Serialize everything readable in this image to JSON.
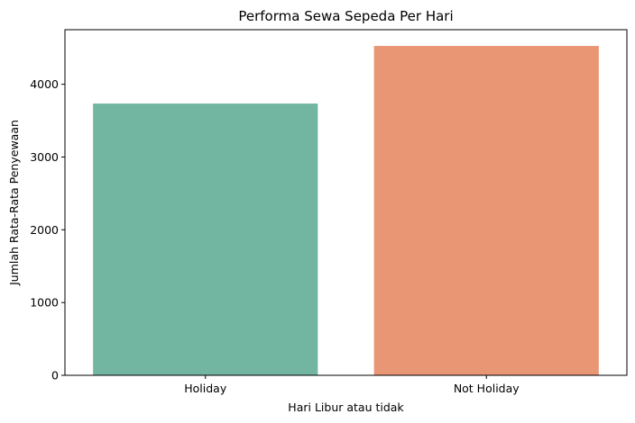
{
  "chart_data": {
    "type": "bar",
    "title": "Performa Sewa Sepeda Per Hari",
    "xlabel": "Hari Libur atau tidak",
    "ylabel": "Jumlah Rata-Rata Penyewaan",
    "categories": [
      "Holiday",
      "Not Holiday"
    ],
    "values": [
      3735,
      4527
    ],
    "colors": [
      "#72b6a1",
      "#e99675"
    ],
    "ylim": [
      0,
      4750
    ],
    "yticks": [
      0,
      1000,
      2000,
      3000,
      4000
    ],
    "grid": false,
    "legend": "none"
  }
}
